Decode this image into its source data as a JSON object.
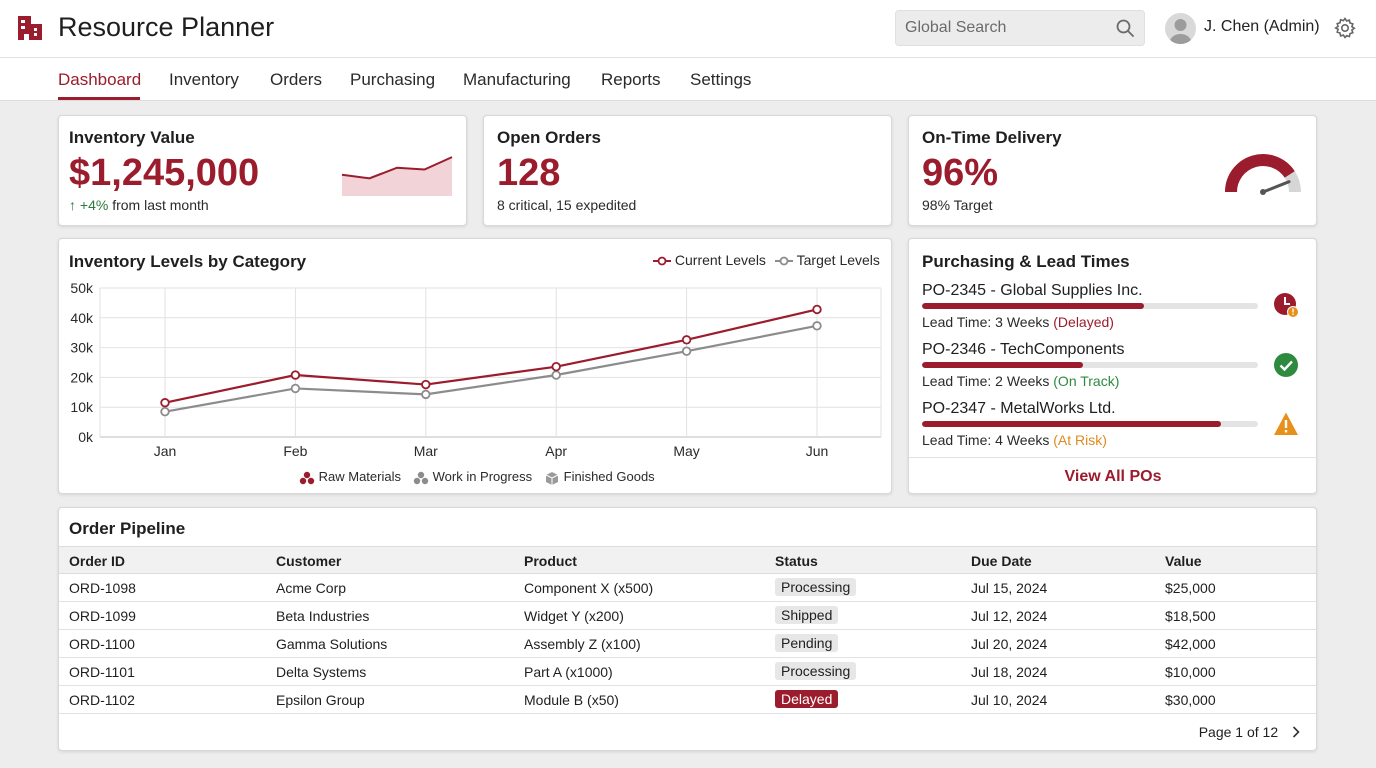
{
  "app": {
    "title": "Resource Planner",
    "brand_color": "#9b1c2c"
  },
  "header": {
    "search_placeholder": "Global Search",
    "user_name": "J. Chen (Admin)",
    "icons": [
      "logo-icon",
      "search-icon",
      "avatar",
      "gear-icon"
    ]
  },
  "nav": {
    "tabs": [
      {
        "label": "Dashboard",
        "active": true
      },
      {
        "label": "Inventory"
      },
      {
        "label": "Orders"
      },
      {
        "label": "Purchasing"
      },
      {
        "label": "Manufacturing"
      },
      {
        "label": "Reports"
      },
      {
        "label": "Settings"
      }
    ]
  },
  "kpis": {
    "inventory": {
      "title": "Inventory Value",
      "value": "$1,245,000",
      "change": "+4%",
      "change_suffix": "from last month",
      "sparkline": [
        12,
        10,
        16,
        15,
        22
      ]
    },
    "orders": {
      "title": "Open Orders",
      "value": "128",
      "sub": "8 critical, 15 expedited"
    },
    "delivery": {
      "title": "On-Time Delivery",
      "value": "96%",
      "sub": "98% Target",
      "gauge_fraction": 0.96
    }
  },
  "chart_data": {
    "type": "line",
    "title": "Inventory Levels by Category",
    "categories": [
      "Jan",
      "Feb",
      "Mar",
      "Apr",
      "May",
      "Jun"
    ],
    "series": [
      {
        "name": "Current Levels",
        "values": [
          11500,
          20800,
          17600,
          23600,
          32600,
          42800
        ],
        "color": "#9b1c2c"
      },
      {
        "name": "Target Levels",
        "values": [
          8500,
          16300,
          14300,
          20800,
          28800,
          37300
        ],
        "color": "#8c8c8c"
      }
    ],
    "ylim": [
      0,
      50000
    ],
    "yticks": [
      "0k",
      "10k",
      "20k",
      "30k",
      "40k",
      "50k"
    ],
    "grid": true,
    "legend_position": "top-right",
    "category_legend": [
      "Raw Materials",
      "Work in Progress",
      "Finished Goods"
    ]
  },
  "purchasing": {
    "title": "Purchasing & Lead Times",
    "items": [
      {
        "title": "PO-2345 - Global Supplies Inc.",
        "lead": "Lead Time: 3 Weeks",
        "status": "(Delayed)",
        "progress": 0.66,
        "icon": "clock-alert-icon"
      },
      {
        "title": "PO-2346 - TechComponents",
        "lead": "Lead Time: 2 Weeks",
        "status": "(On Track)",
        "progress": 0.48,
        "icon": "check-circle-icon"
      },
      {
        "title": "PO-2347 - MetalWorks Ltd.",
        "lead": "Lead Time: 4 Weeks",
        "status": "(At Risk)",
        "progress": 0.89,
        "icon": "warning-icon"
      }
    ],
    "view_all": "View All POs"
  },
  "pipeline": {
    "title": "Order Pipeline",
    "columns": [
      "Order ID",
      "Customer",
      "Product",
      "Status",
      "Due Date",
      "Value"
    ],
    "rows": [
      [
        "ORD-1098",
        "Acme Corp",
        "Component X (x500)",
        "Processing",
        "Jul 15, 2024",
        "$25,000"
      ],
      [
        "ORD-1099",
        "Beta Industries",
        "Widget Y (x200)",
        "Shipped",
        "Jul 12, 2024",
        "$18,500"
      ],
      [
        "ORD-1100",
        "Gamma Solutions",
        "Assembly Z (x100)",
        "Pending",
        "Jul 20, 2024",
        "$42,000"
      ],
      [
        "ORD-1101",
        "Delta Systems",
        "Part A (x1000)",
        "Processing",
        "Jul 18, 2024",
        "$10,000"
      ],
      [
        "ORD-1102",
        "Epsilon Group",
        "Module B (x50)",
        "Delayed",
        "Jul 10, 2024",
        "$30,000"
      ]
    ],
    "pager": "Page 1 of 12"
  }
}
